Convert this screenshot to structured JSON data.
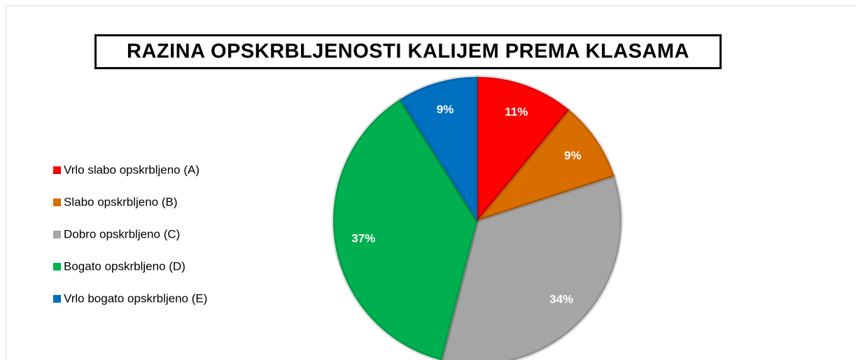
{
  "chart_data": {
    "type": "pie",
    "title": "RAZINA OPSKRBLJENOSTI KALIJEM PREMA KLASAMA",
    "categories": [
      "Vrlo slabo opskrbljeno (A)",
      "Slabo opskrbljeno (B)",
      "Dobro opskrbljeno (C)",
      "Bogato opskrbljeno (D)",
      "Vrlo bogato opskrbljeno (E)"
    ],
    "values": [
      11,
      9,
      34,
      37,
      9
    ],
    "value_labels": [
      "11%",
      "9%",
      "34%",
      "37%",
      "9%"
    ],
    "colors": [
      "#ff0000",
      "#d86d00",
      "#a5a5a5",
      "#00b050",
      "#0070c0"
    ],
    "legend": "left"
  }
}
